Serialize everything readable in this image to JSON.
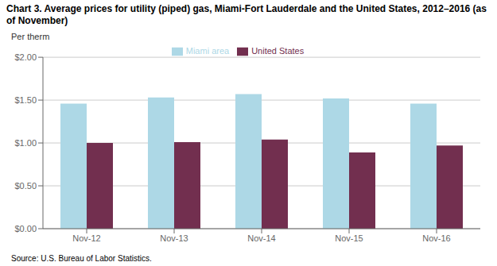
{
  "chart_data": {
    "type": "bar",
    "title": "Chart 3. Average prices for utility (piped) gas, Miami-Fort Lauderdale and the United States, 2012–2016 (as of November)",
    "ylabel": "Per therm",
    "annotations": [
      "Source: U.S. Bureau of Labor Statistics."
    ],
    "categories": [
      "Nov-12",
      "Nov-13",
      "Nov-14",
      "Nov-15",
      "Nov-16"
    ],
    "series": [
      {
        "name": "Miami area",
        "color": "#ADD8E6",
        "values": [
          1.46,
          1.53,
          1.57,
          1.52,
          1.46
        ]
      },
      {
        "name": "United States",
        "color": "#722F4F",
        "values": [
          1.0,
          1.01,
          1.04,
          0.89,
          0.97
        ]
      }
    ],
    "ylim": [
      0.0,
      2.0
    ],
    "yticks": [
      {
        "value": 0.0,
        "label": "$0.00"
      },
      {
        "value": 0.5,
        "label": "$0.50"
      },
      {
        "value": 1.0,
        "label": "$1.00"
      },
      {
        "value": 1.5,
        "label": "$1.50"
      },
      {
        "value": 2.0,
        "label": "$2.00"
      }
    ],
    "grid": true,
    "legend": "upper center"
  }
}
